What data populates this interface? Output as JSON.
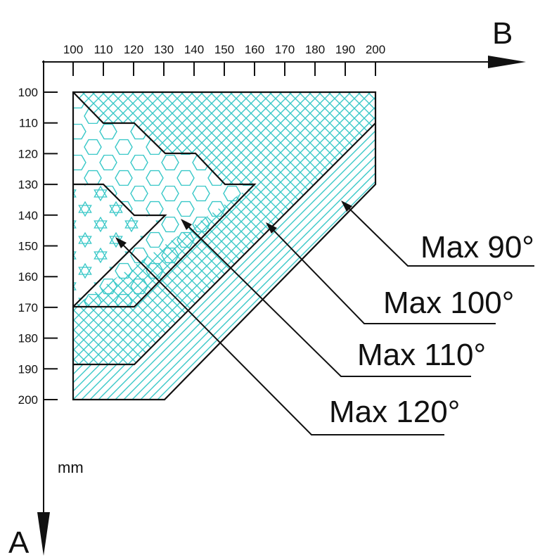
{
  "axes": {
    "horizontal": {
      "letter": "B",
      "ticks": [
        "100",
        "110",
        "120",
        "130",
        "140",
        "150",
        "160",
        "170",
        "180",
        "190",
        "200"
      ]
    },
    "vertical": {
      "letter": "A",
      "ticks": [
        "100",
        "110",
        "120",
        "130",
        "140",
        "150",
        "160",
        "170",
        "180",
        "190",
        "200"
      ]
    },
    "unit": "mm"
  },
  "zones": [
    {
      "id": "max90",
      "label": "Max 90°",
      "pattern": "crosshatch"
    },
    {
      "id": "max100",
      "label": "Max 100°",
      "pattern": "diagonal-lines"
    },
    {
      "id": "max110",
      "label": "Max 110°",
      "pattern": "hexagons"
    },
    {
      "id": "max120",
      "label": "Max 120°",
      "pattern": "stars"
    }
  ],
  "colors": {
    "fill": "#39c8c8",
    "line": "#111111",
    "background": "#ffffff"
  }
}
